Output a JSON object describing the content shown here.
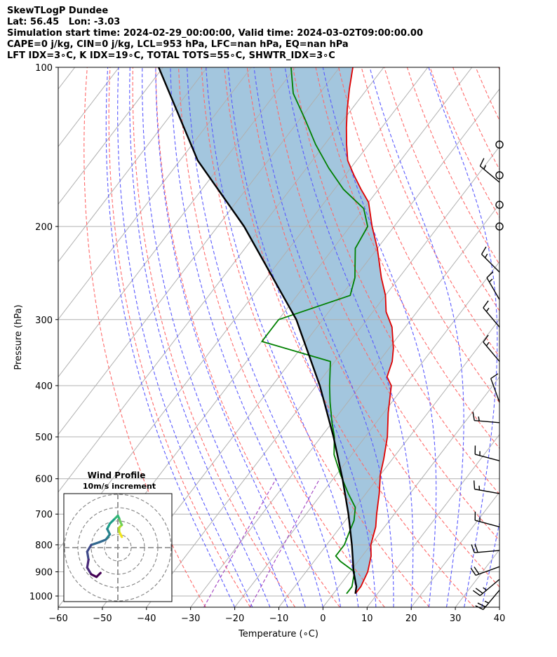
{
  "header": {
    "lines": [
      "SkewTLogP Dundee",
      "Lat: 56.45   Lon: -3.03",
      "Simulation start time: 2024-02-29_00:00:00, Valid time: 2024-03-02T09:00:00.00",
      "CAPE=0 j/kg, CIN=0 j/kg, LCL=953 hPa, LFC=nan hPa, EQ=nan hPa",
      "LFT IDX=3∘C, K IDX=19∘C, TOTAL TOTS=55∘C, SHWTR_IDX=3∘C"
    ]
  },
  "chart_data": {
    "type": "line",
    "subtype": "skew-T log-P",
    "xlabel": "Temperature (∘C)",
    "ylabel": "Pressure (hPa)",
    "xlim": [
      -60,
      40
    ],
    "ylim_hpa": [
      1050,
      100
    ],
    "pressure_scale": "log",
    "x_ticks": [
      "−60",
      "−50",
      "−40",
      "−30",
      "−20",
      "−10",
      "0",
      "10",
      "20",
      "30",
      "40"
    ],
    "y_ticks": [
      1000,
      900,
      800,
      700,
      600,
      500,
      400,
      300,
      200,
      100
    ],
    "series": [
      {
        "role": "temperature",
        "color": "#e00000",
        "points": [
          [
            5,
            990
          ],
          [
            5,
            960
          ],
          [
            4,
            900
          ],
          [
            2,
            840
          ],
          [
            0,
            800
          ],
          [
            -2,
            740
          ],
          [
            -4,
            700
          ],
          [
            -7,
            640
          ],
          [
            -10,
            590
          ],
          [
            -12,
            550
          ],
          [
            -15,
            500
          ],
          [
            -19,
            450
          ],
          [
            -23,
            400
          ],
          [
            -25.5,
            385
          ],
          [
            -27,
            360
          ],
          [
            -29,
            340
          ],
          [
            -33,
            310
          ],
          [
            -37,
            290
          ],
          [
            -40,
            270
          ],
          [
            -44,
            250
          ],
          [
            -50,
            220
          ],
          [
            -55,
            200
          ],
          [
            -60,
            180
          ],
          [
            -64,
            170
          ],
          [
            -68,
            160
          ],
          [
            -72,
            150
          ],
          [
            -75,
            140
          ],
          [
            -78,
            130
          ],
          [
            -81,
            120
          ],
          [
            -84,
            110
          ],
          [
            -87,
            100
          ]
        ]
      },
      {
        "role": "dewpoint",
        "color": "#008000",
        "points": [
          [
            3,
            990
          ],
          [
            3,
            960
          ],
          [
            1,
            900
          ],
          [
            -4,
            860
          ],
          [
            -6,
            840
          ],
          [
            -6,
            800
          ],
          [
            -7,
            760
          ],
          [
            -8,
            720
          ],
          [
            -10,
            680
          ],
          [
            -14,
            640
          ],
          [
            -19,
            590
          ],
          [
            -24,
            540
          ],
          [
            -27,
            500
          ],
          [
            -30,
            470
          ],
          [
            -34,
            430
          ],
          [
            -37,
            400
          ],
          [
            -41,
            360
          ],
          [
            -60,
            330
          ],
          [
            -60,
            300
          ],
          [
            -48,
            270
          ],
          [
            -50,
            250
          ],
          [
            -55,
            220
          ],
          [
            -56,
            200
          ],
          [
            -60,
            185
          ],
          [
            -68,
            170
          ],
          [
            -75,
            155
          ],
          [
            -82,
            140
          ],
          [
            -89,
            125
          ],
          [
            -96,
            112
          ],
          [
            -101,
            100
          ]
        ]
      },
      {
        "role": "parcel",
        "color": "#000000",
        "points": [
          [
            5,
            990
          ],
          [
            4,
            960
          ],
          [
            0.8,
            900
          ],
          [
            -4.3,
            800
          ],
          [
            -10.4,
            700
          ],
          [
            -17.9,
            600
          ],
          [
            -27.2,
            500
          ],
          [
            -39.2,
            400
          ],
          [
            -56,
            300
          ],
          [
            -84,
            200
          ],
          [
            -106,
            150
          ],
          [
            -131,
            100
          ]
        ]
      }
    ],
    "shaded_region": {
      "between": [
        "parcel",
        "temperature"
      ],
      "color": "#a3c6de"
    },
    "wind_barbs": {
      "units": "kt",
      "levels": [
        {
          "p": 140,
          "speed": 0,
          "dir": 0
        },
        {
          "p": 160,
          "speed": 0,
          "dir": 0
        },
        {
          "p": 182,
          "speed": 0,
          "dir": 0
        },
        {
          "p": 200,
          "speed": 0,
          "dir": 0
        },
        {
          "p": 165,
          "speed": 15,
          "dir": 310
        },
        {
          "p": 244,
          "speed": 15,
          "dir": 315
        },
        {
          "p": 275,
          "speed": 15,
          "dir": 330
        },
        {
          "p": 310,
          "speed": 15,
          "dir": 320
        },
        {
          "p": 360,
          "speed": 15,
          "dir": 320
        },
        {
          "p": 430,
          "speed": 10,
          "dir": 340
        },
        {
          "p": 470,
          "speed": 15,
          "dir": 275
        },
        {
          "p": 555,
          "speed": 15,
          "dir": 285
        },
        {
          "p": 640,
          "speed": 15,
          "dir": 280
        },
        {
          "p": 740,
          "speed": 15,
          "dir": 285
        },
        {
          "p": 820,
          "speed": 20,
          "dir": 265
        },
        {
          "p": 880,
          "speed": 20,
          "dir": 250
        },
        {
          "p": 930,
          "speed": 25,
          "dir": 230
        },
        {
          "p": 975,
          "speed": 25,
          "dir": 220
        }
      ]
    },
    "inset": {
      "title": "Wind Profile",
      "subtitle": "10m/s increment",
      "hodograph": [
        [
          0.3,
          0.8
        ],
        [
          0.2,
          1.0
        ],
        [
          0.1,
          1.2
        ],
        [
          0.1,
          1.5
        ],
        [
          0.3,
          1.7
        ],
        [
          0.2,
          1.9
        ],
        [
          0.1,
          2.2
        ],
        [
          0.0,
          2.4
        ],
        [
          -0.3,
          2.1
        ],
        [
          -0.6,
          1.8
        ],
        [
          -0.8,
          1.4
        ],
        [
          -0.6,
          1.0
        ],
        [
          -0.9,
          0.6
        ],
        [
          -1.4,
          0.4
        ],
        [
          -2.0,
          0.2
        ],
        [
          -2.3,
          -0.3
        ],
        [
          -2.2,
          -0.9
        ],
        [
          -2.3,
          -1.5
        ],
        [
          -2.0,
          -2.0
        ],
        [
          -1.6,
          -2.2
        ],
        [
          -1.3,
          -1.9
        ]
      ]
    }
  }
}
